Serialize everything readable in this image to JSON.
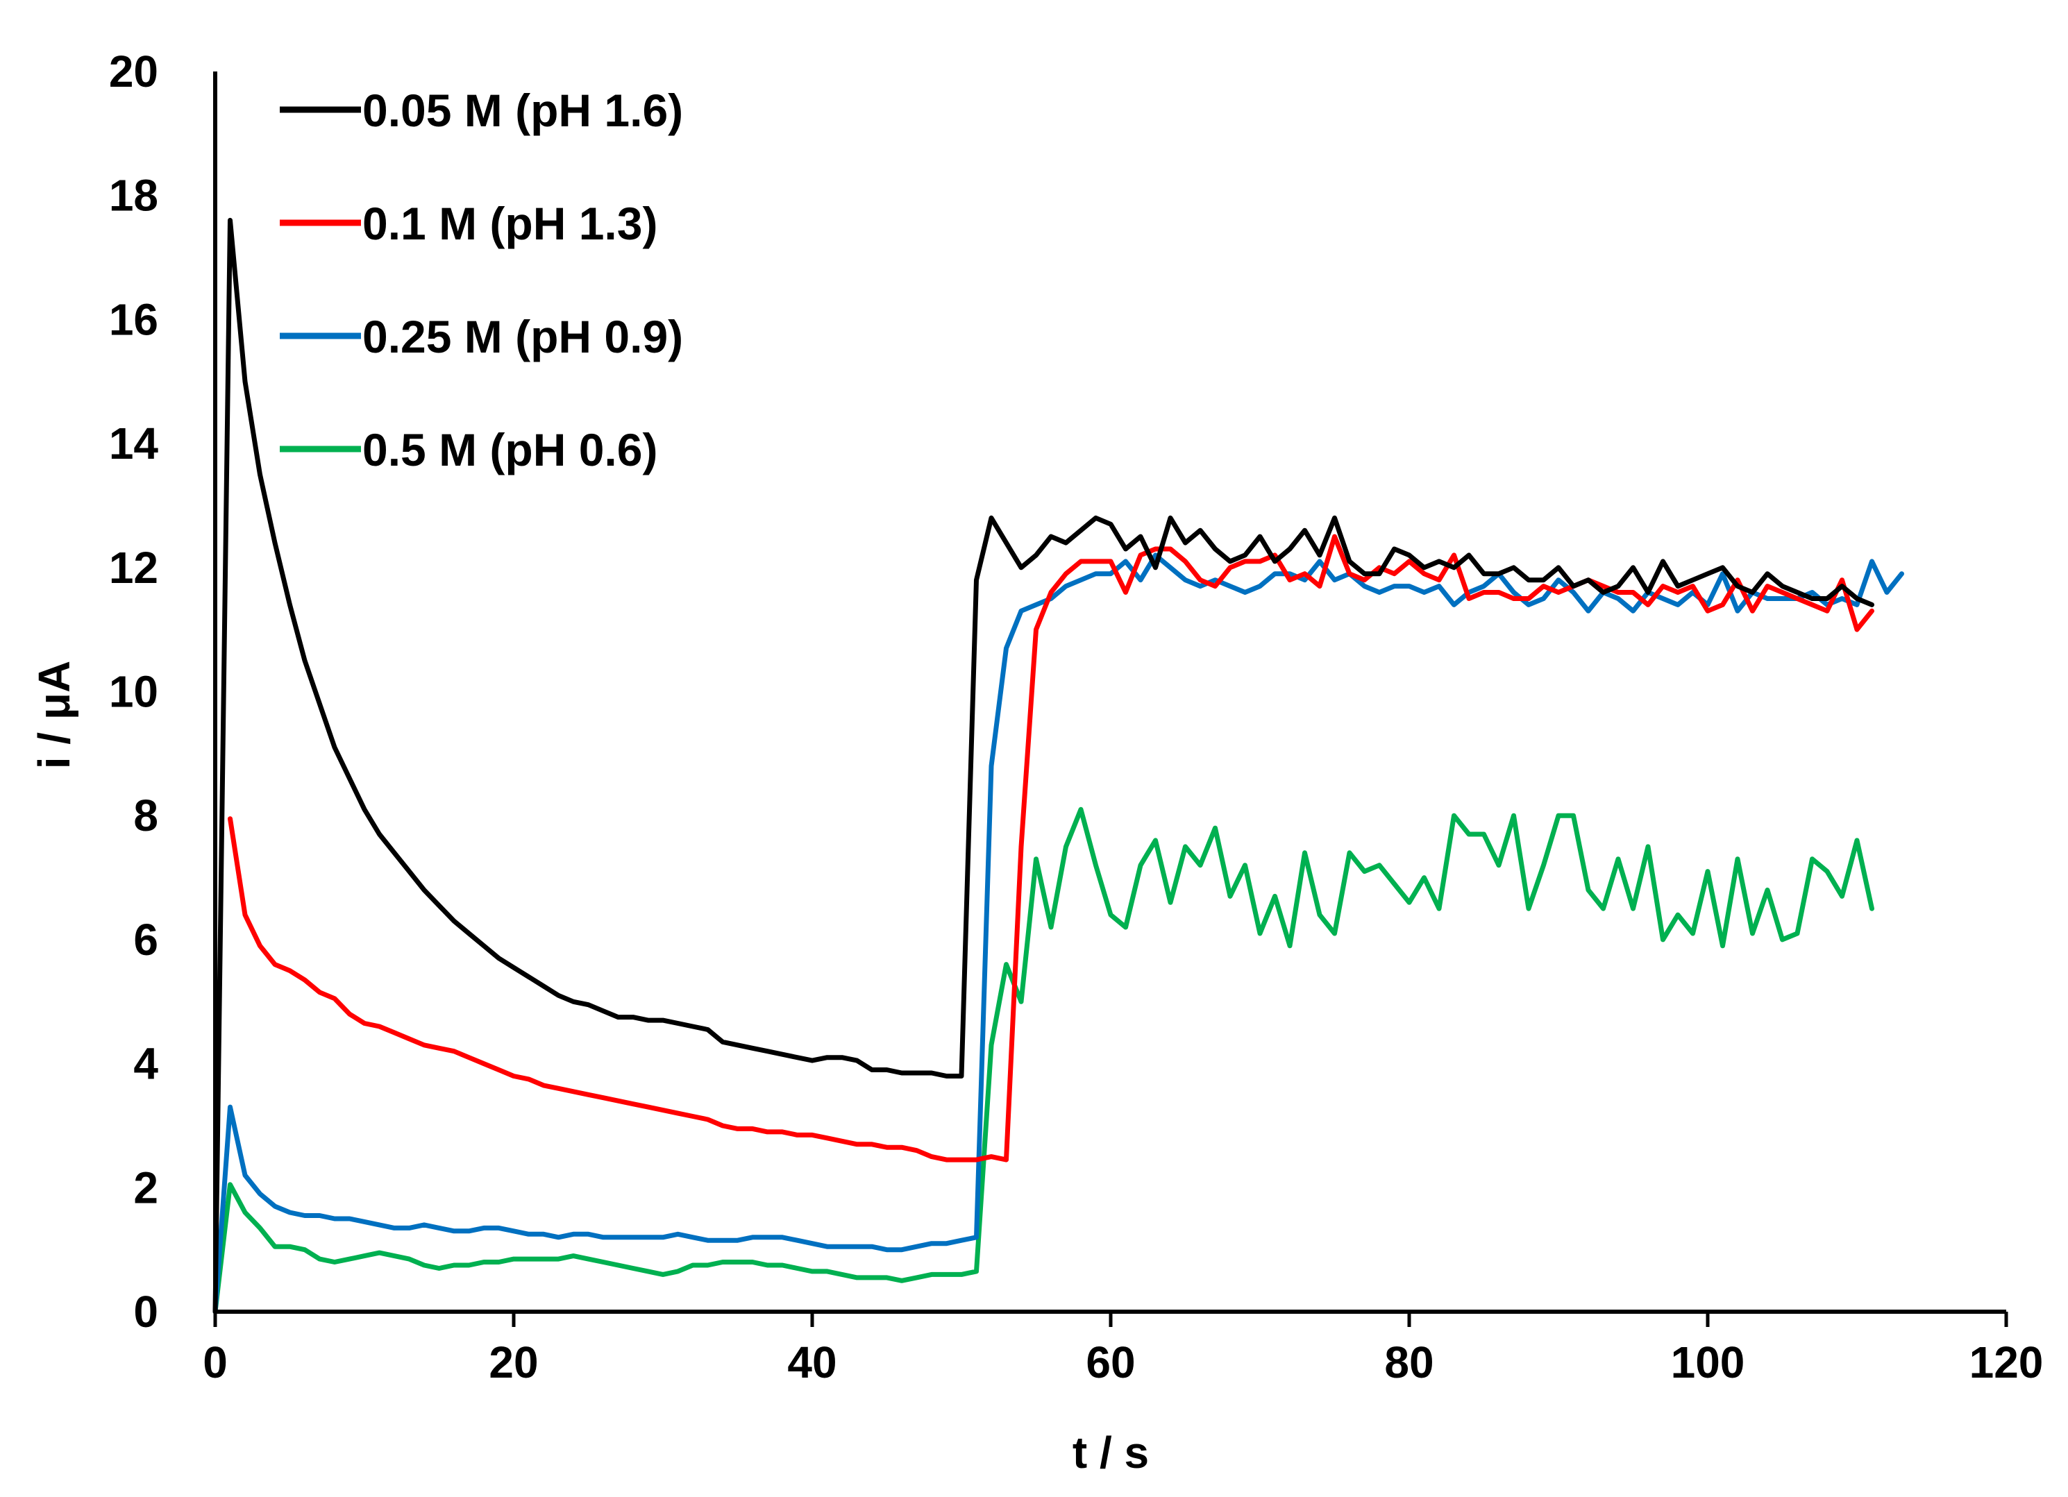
{
  "chart_data": {
    "type": "line",
    "title": "",
    "xlabel": "t / s",
    "ylabel": "i / μA",
    "xlim": [
      0,
      120
    ],
    "ylim": [
      0,
      20
    ],
    "xticks": [
      0,
      20,
      40,
      60,
      80,
      100,
      120
    ],
    "yticks": [
      0,
      2,
      4,
      6,
      8,
      10,
      12,
      14,
      16,
      18,
      20
    ],
    "grid": false,
    "legend_position": "top-left",
    "series": [
      {
        "name": "0.05 M (pH 1.6)",
        "color": "#000000",
        "x": [
          0,
          1,
          2,
          3,
          4,
          5,
          6,
          7,
          8,
          9,
          10,
          11,
          12,
          13,
          14,
          15,
          16,
          17,
          18,
          19,
          20,
          21,
          22,
          23,
          24,
          25,
          26,
          27,
          28,
          29,
          30,
          31,
          32,
          33,
          34,
          35,
          36,
          37,
          38,
          39,
          40,
          41,
          42,
          43,
          44,
          45,
          46,
          47,
          48,
          49,
          50,
          51,
          52,
          53,
          54,
          55,
          56,
          57,
          58,
          59,
          60,
          61,
          62,
          63,
          64,
          65,
          66,
          67,
          68,
          69,
          70,
          71,
          72,
          73,
          74,
          75,
          76,
          77,
          78,
          79,
          80,
          81,
          82,
          83,
          84,
          85,
          86,
          87,
          88,
          89,
          90,
          91,
          92,
          93,
          94,
          95,
          96,
          97,
          98,
          99,
          100,
          101,
          102,
          103,
          104,
          105,
          106,
          107,
          108,
          109,
          110,
          111
        ],
        "values": [
          0,
          17.6,
          15,
          13.5,
          12.4,
          11.4,
          10.5,
          9.8,
          9.1,
          8.6,
          8.1,
          7.7,
          7.4,
          7.1,
          6.8,
          6.55,
          6.3,
          6.1,
          5.9,
          5.7,
          5.55,
          5.4,
          5.25,
          5.1,
          5,
          4.95,
          4.85,
          4.75,
          4.75,
          4.7,
          4.7,
          4.65,
          4.6,
          4.55,
          4.35,
          4.3,
          4.25,
          4.2,
          4.15,
          4.1,
          4.05,
          4.1,
          4.1,
          4.05,
          3.9,
          3.9,
          3.85,
          3.85,
          3.85,
          3.8,
          3.8,
          11.8,
          12.8,
          12.4,
          12,
          12.2,
          12.5,
          12.4,
          12.6,
          12.8,
          12.7,
          12.3,
          12.5,
          12,
          12.8,
          12.4,
          12.6,
          12.3,
          12.1,
          12.2,
          12.5,
          12.1,
          12.3,
          12.6,
          12.2,
          12.8,
          12.1,
          11.9,
          11.9,
          12.3,
          12.2,
          12,
          12.1,
          12,
          12.2,
          11.9,
          11.9,
          12,
          11.8,
          11.8,
          12,
          11.7,
          11.8,
          11.6,
          11.7,
          12,
          11.6,
          12.1,
          11.7,
          11.8,
          11.9,
          12,
          11.7,
          11.6,
          11.9,
          11.7,
          11.6,
          11.5,
          11.5,
          11.7,
          11.5,
          11.4
        ]
      },
      {
        "name": "0.1 M (pH 1.3)",
        "color": "#ff0000",
        "x": [
          1,
          2,
          3,
          4,
          5,
          6,
          7,
          8,
          9,
          10,
          11,
          12,
          13,
          14,
          15,
          16,
          17,
          18,
          19,
          20,
          21,
          22,
          23,
          24,
          25,
          26,
          27,
          28,
          29,
          30,
          31,
          32,
          33,
          34,
          35,
          36,
          37,
          38,
          39,
          40,
          41,
          42,
          43,
          44,
          45,
          46,
          47,
          48,
          49,
          50,
          51,
          52,
          53,
          54,
          55,
          56,
          57,
          58,
          59,
          60,
          61,
          62,
          63,
          64,
          65,
          66,
          67,
          68,
          69,
          70,
          71,
          72,
          73,
          74,
          75,
          76,
          77,
          78,
          79,
          80,
          81,
          82,
          83,
          84,
          85,
          86,
          87,
          88,
          89,
          90,
          91,
          92,
          93,
          94,
          95,
          96,
          97,
          98,
          99,
          100,
          101,
          102,
          103,
          104,
          105,
          106,
          107,
          108,
          109,
          110,
          111
        ],
        "values": [
          7.95,
          6.4,
          5.9,
          5.6,
          5.5,
          5.35,
          5.15,
          5.05,
          4.8,
          4.65,
          4.6,
          4.5,
          4.4,
          4.3,
          4.25,
          4.2,
          4.1,
          4,
          3.9,
          3.8,
          3.75,
          3.65,
          3.6,
          3.55,
          3.5,
          3.45,
          3.4,
          3.35,
          3.3,
          3.25,
          3.2,
          3.15,
          3.1,
          3,
          2.95,
          2.95,
          2.9,
          2.9,
          2.85,
          2.85,
          2.8,
          2.75,
          2.7,
          2.7,
          2.65,
          2.65,
          2.6,
          2.5,
          2.45,
          2.45,
          2.45,
          2.5,
          2.45,
          7.5,
          11,
          11.6,
          11.9,
          12.1,
          12.1,
          12.1,
          11.6,
          12.2,
          12.3,
          12.3,
          12.1,
          11.8,
          11.7,
          12,
          12.1,
          12.1,
          12.2,
          11.8,
          11.9,
          11.7,
          12.5,
          11.9,
          11.8,
          12,
          11.9,
          12.1,
          11.9,
          11.8,
          12.2,
          11.5,
          11.6,
          11.6,
          11.5,
          11.5,
          11.7,
          11.6,
          11.7,
          11.8,
          11.7,
          11.6,
          11.6,
          11.4,
          11.7,
          11.6,
          11.7,
          11.3,
          11.4,
          11.8,
          11.3,
          11.7,
          11.6,
          11.5,
          11.4,
          11.3,
          11.8,
          11,
          11.3
        ]
      },
      {
        "name": "0.25 M (pH 0.9)",
        "color": "#0070c0",
        "x": [
          0,
          1,
          2,
          3,
          4,
          5,
          6,
          7,
          8,
          9,
          10,
          11,
          12,
          13,
          14,
          15,
          16,
          17,
          18,
          19,
          20,
          21,
          22,
          23,
          24,
          25,
          26,
          27,
          28,
          29,
          30,
          31,
          32,
          33,
          34,
          35,
          36,
          37,
          38,
          39,
          40,
          41,
          42,
          43,
          44,
          45,
          46,
          47,
          48,
          49,
          50,
          51,
          52,
          53,
          54,
          55,
          56,
          57,
          58,
          59,
          60,
          61,
          62,
          63,
          64,
          65,
          66,
          67,
          68,
          69,
          70,
          71,
          72,
          73,
          74,
          75,
          76,
          77,
          78,
          79,
          80,
          81,
          82,
          83,
          84,
          85,
          86,
          87,
          88,
          89,
          90,
          91,
          92,
          93,
          94,
          95,
          96,
          97,
          98,
          99,
          100,
          101,
          102,
          103,
          104,
          105,
          106,
          107,
          108,
          109,
          110,
          111,
          112,
          113
        ],
        "values": [
          0,
          3.3,
          2.2,
          1.9,
          1.7,
          1.6,
          1.55,
          1.55,
          1.5,
          1.5,
          1.45,
          1.4,
          1.35,
          1.35,
          1.4,
          1.35,
          1.3,
          1.3,
          1.35,
          1.35,
          1.3,
          1.25,
          1.25,
          1.2,
          1.25,
          1.25,
          1.2,
          1.2,
          1.2,
          1.2,
          1.2,
          1.25,
          1.2,
          1.15,
          1.15,
          1.15,
          1.2,
          1.2,
          1.2,
          1.15,
          1.1,
          1.05,
          1.05,
          1.05,
          1.05,
          1,
          1,
          1.05,
          1.1,
          1.1,
          1.15,
          1.2,
          8.8,
          10.7,
          11.3,
          11.4,
          11.5,
          11.7,
          11.8,
          11.9,
          11.9,
          12.1,
          11.8,
          12.2,
          12,
          11.8,
          11.7,
          11.8,
          11.7,
          11.6,
          11.7,
          11.9,
          11.9,
          11.8,
          12.1,
          11.8,
          11.9,
          11.7,
          11.6,
          11.7,
          11.7,
          11.6,
          11.7,
          11.4,
          11.6,
          11.7,
          11.9,
          11.6,
          11.4,
          11.5,
          11.8,
          11.6,
          11.3,
          11.6,
          11.5,
          11.3,
          11.6,
          11.5,
          11.4,
          11.6,
          11.4,
          11.9,
          11.3,
          11.6,
          11.5,
          11.5,
          11.5,
          11.6,
          11.4,
          11.5,
          11.4,
          12.1,
          11.6,
          11.9
        ]
      },
      {
        "name": "0.5 M (pH 0.6)",
        "color": "#00b050",
        "x": [
          0,
          1,
          2,
          3,
          4,
          5,
          6,
          7,
          8,
          9,
          10,
          11,
          12,
          13,
          14,
          15,
          16,
          17,
          18,
          19,
          20,
          21,
          22,
          23,
          24,
          25,
          26,
          27,
          28,
          29,
          30,
          31,
          32,
          33,
          34,
          35,
          36,
          37,
          38,
          39,
          40,
          41,
          42,
          43,
          44,
          45,
          46,
          47,
          48,
          49,
          50,
          51,
          52,
          53,
          54,
          55,
          56,
          57,
          58,
          59,
          60,
          61,
          62,
          63,
          64,
          65,
          66,
          67,
          68,
          69,
          70,
          71,
          72,
          73,
          74,
          75,
          76,
          77,
          78,
          79,
          80,
          81,
          82,
          83,
          84,
          85,
          86,
          87,
          88,
          89,
          90,
          91,
          92,
          93,
          94,
          95,
          96,
          97,
          98,
          99,
          100,
          101,
          102,
          103,
          104,
          105,
          106,
          107,
          108,
          109,
          110,
          111
        ],
        "values": [
          0,
          2.05,
          1.6,
          1.35,
          1.05,
          1.05,
          1,
          0.85,
          0.8,
          0.85,
          0.9,
          0.95,
          0.9,
          0.85,
          0.75,
          0.7,
          0.75,
          0.75,
          0.8,
          0.8,
          0.85,
          0.85,
          0.85,
          0.85,
          0.9,
          0.85,
          0.8,
          0.75,
          0.7,
          0.65,
          0.6,
          0.65,
          0.75,
          0.75,
          0.8,
          0.8,
          0.8,
          0.75,
          0.75,
          0.7,
          0.65,
          0.65,
          0.6,
          0.55,
          0.55,
          0.55,
          0.5,
          0.55,
          0.6,
          0.6,
          0.6,
          0.65,
          4.3,
          5.6,
          5,
          7.3,
          6.2,
          7.5,
          8.1,
          7.2,
          6.4,
          6.2,
          7.2,
          7.6,
          6.6,
          7.5,
          7.2,
          7.8,
          6.7,
          7.2,
          6.1,
          6.7,
          5.9,
          7.4,
          6.4,
          6.1,
          7.4,
          7.1,
          7.2,
          6.9,
          6.6,
          7,
          6.5,
          8,
          7.7,
          7.7,
          7.2,
          8,
          6.5,
          7.2,
          8,
          8,
          6.8,
          6.5,
          7.3,
          6.5,
          7.5,
          6,
          6.4,
          6.1,
          7.1,
          5.9,
          7.3,
          6.1,
          6.8,
          6,
          6.1,
          7.3,
          7.1,
          6.7,
          7.6,
          6.5
        ]
      }
    ]
  }
}
